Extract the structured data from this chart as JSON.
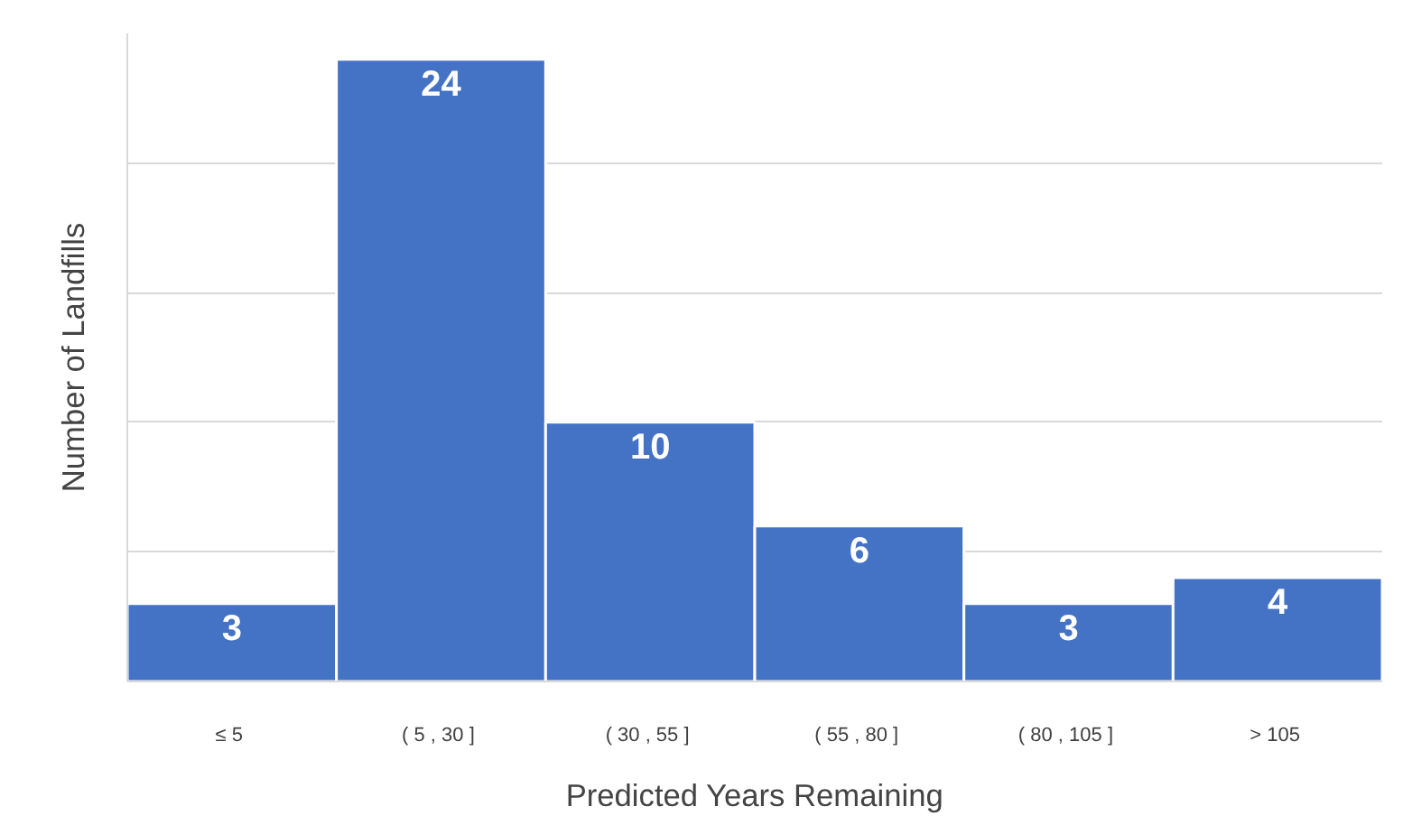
{
  "chart_data": {
    "type": "bar",
    "xlabel": "Predicted Years Remaining",
    "ylabel": "Number of Landfills",
    "categories": [
      "≤  5",
      "( 5 ,  30 ]",
      "( 30 ,  55 ]",
      "( 55 ,  80 ]",
      "( 80 ,  105 ]",
      ">  105"
    ],
    "values": [
      3,
      24,
      10,
      6,
      3,
      4
    ],
    "color": "#4472c4",
    "data_labels": true,
    "ylim": [
      0,
      25
    ],
    "yticks": [
      {
        "value": 0,
        "label": null
      },
      {
        "value": 5,
        "label": null
      },
      {
        "value": 10,
        "label": null
      },
      {
        "value": 15,
        "label": null
      },
      {
        "value": 20,
        "label": null
      }
    ],
    "grid": "y",
    "tick_labels": "x"
  }
}
